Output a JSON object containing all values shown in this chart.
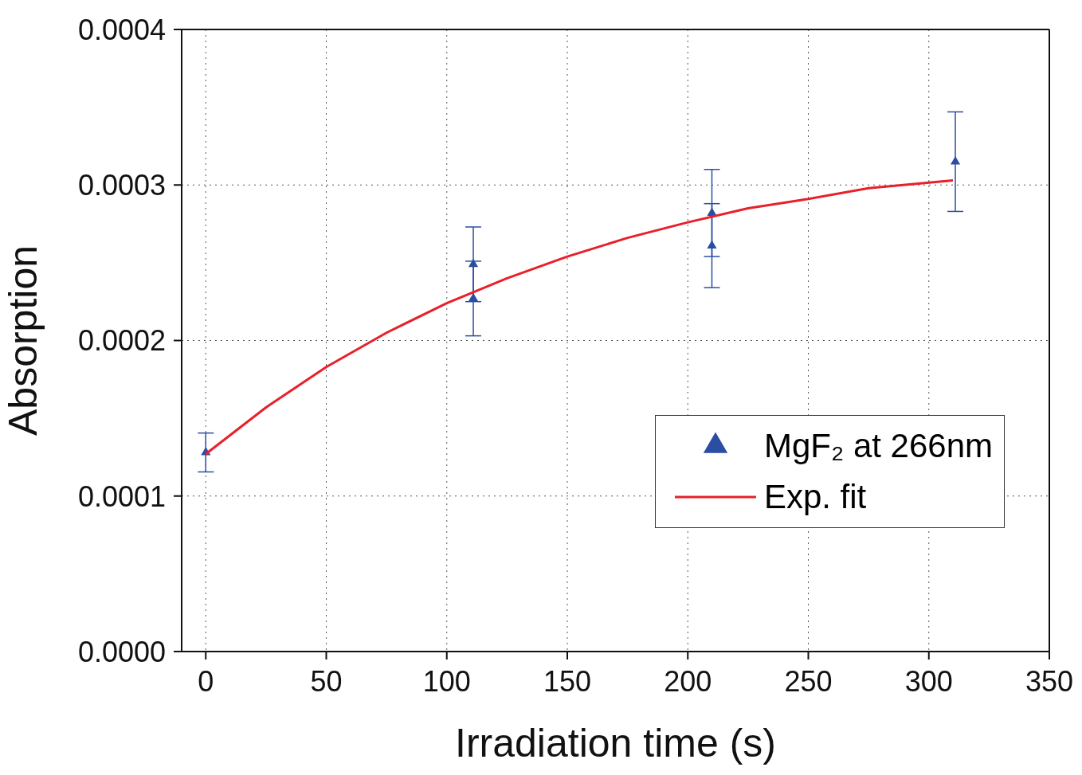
{
  "chart_data": {
    "type": "scatter",
    "xlabel": "Irradiation time (s)",
    "ylabel": "Absorption",
    "xlim": [
      -10,
      350
    ],
    "xticks": [
      0,
      50,
      100,
      150,
      200,
      250,
      300,
      350
    ],
    "ylim": [
      0,
      0.0004
    ],
    "yticks": [
      {
        "value": 0,
        "label": "0.0000"
      },
      {
        "value": 0.0001,
        "label": "0.0001"
      },
      {
        "value": 0.0002,
        "label": "0.0002"
      },
      {
        "value": 0.0003,
        "label": "0.0003"
      },
      {
        "value": 0.0004,
        "label": "0.0004"
      }
    ],
    "grid": true,
    "legend": "bottom right",
    "series": [
      {
        "name": "MgF₂ at 266nm",
        "color": "#2b4ea2",
        "marker": "triangle",
        "x": [
          0,
          111,
          111,
          210,
          210,
          311
        ],
        "values": [
          0.000128,
          0.000249,
          0.000227,
          0.000282,
          0.000261,
          0.000315
        ],
        "errors": [
          1.25e-05,
          2.4e-05,
          2.4e-05,
          2.8e-05,
          2.7e-05,
          3.2e-05
        ]
      },
      {
        "name": "Exp. fit",
        "type": "line",
        "color": "#e8202a",
        "x": [
          0,
          25,
          50,
          75,
          100,
          125,
          150,
          175,
          200,
          225,
          250,
          275,
          310
        ],
        "values": [
          0.000127,
          0.000157,
          0.000183,
          0.000205,
          0.000224,
          0.00024,
          0.000254,
          0.000266,
          0.000276,
          0.000285,
          0.000291,
          0.000298,
          0.000303
        ]
      }
    ]
  }
}
